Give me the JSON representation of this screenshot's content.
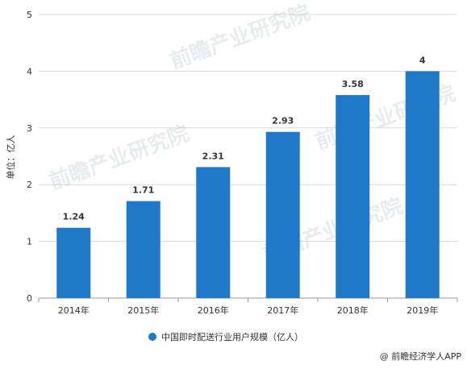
{
  "chart_data": {
    "type": "bar",
    "categories": [
      "2014年",
      "2015年",
      "2016年",
      "2017年",
      "2018年",
      "2019年"
    ],
    "series": [
      {
        "name": "中国即时配送行业用户规模（亿人）",
        "values": [
          1.24,
          1.71,
          2.31,
          2.93,
          3.58,
          4
        ]
      }
    ],
    "data_labels": [
      "1.24",
      "1.71",
      "2.31",
      "2.93",
      "3.58",
      "4"
    ],
    "ylabel": "单位：亿人",
    "ylim": [
      0,
      5
    ],
    "yticks": [
      0,
      1,
      2,
      3,
      4,
      5
    ],
    "grid": true,
    "legend_position": "bottom-center",
    "bar_color": "#1f78c8"
  },
  "source": "@ 前瞻经济学人APP",
  "watermark": "前瞻产业研究院"
}
